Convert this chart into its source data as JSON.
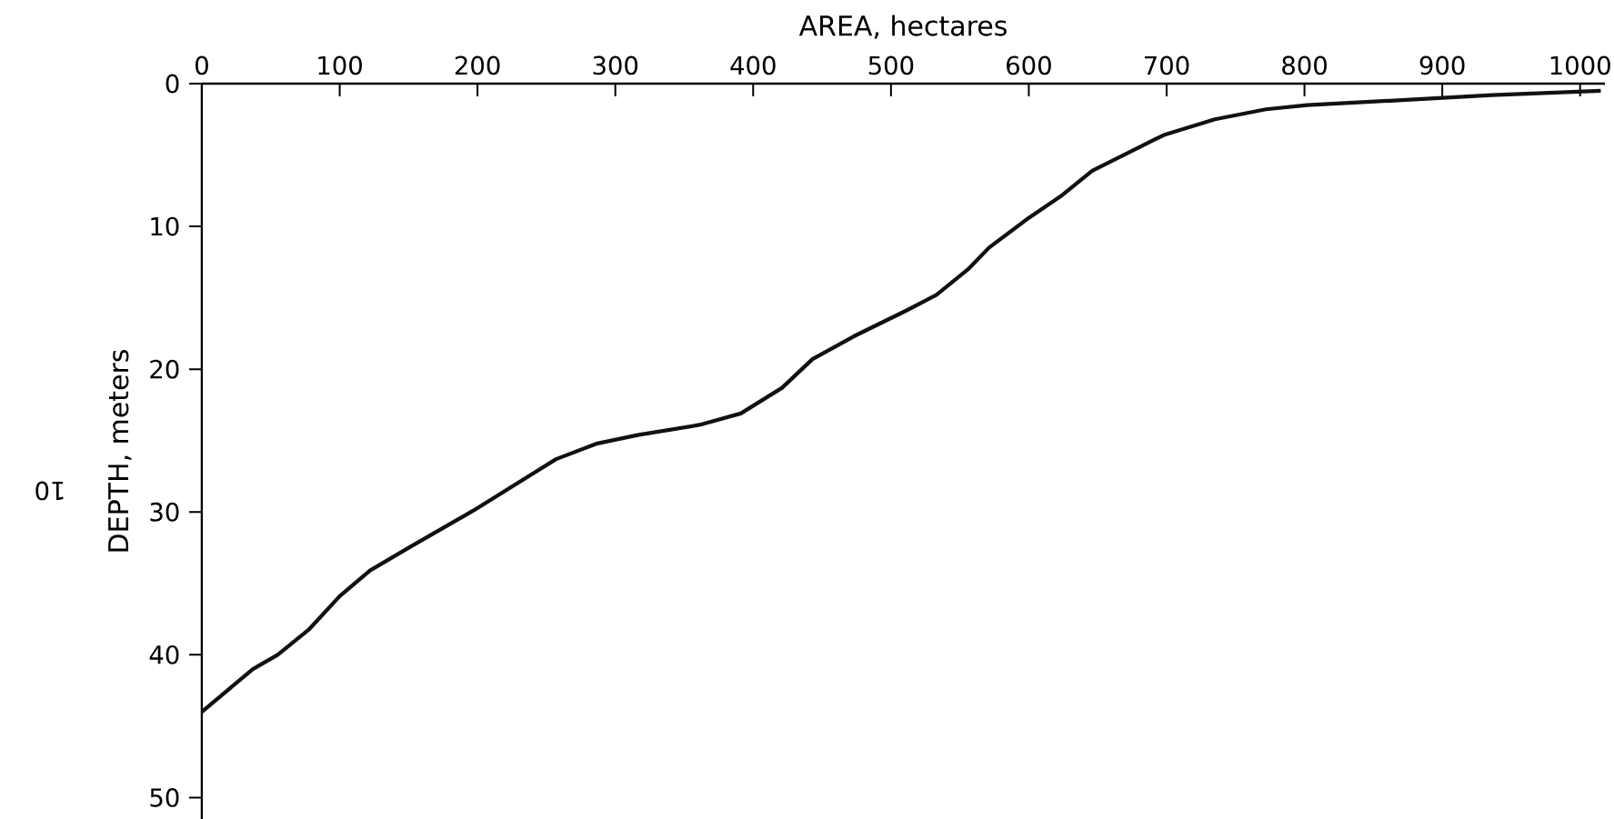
{
  "chart_data": {
    "type": "line",
    "xlabel": "AREA, hectares",
    "ylabel": "DEPTH, meters",
    "x": [
      0,
      37,
      55,
      78,
      100,
      122,
      152,
      197,
      227,
      257,
      287,
      317,
      361,
      391,
      421,
      443,
      473,
      511,
      533,
      556,
      571,
      600,
      623,
      646,
      675,
      698,
      735,
      772,
      802,
      862,
      936,
      1015
    ],
    "values": [
      44,
      41,
      40,
      38.2,
      35.9,
      34.1,
      32.4,
      29.9,
      28.1,
      26.3,
      25.2,
      24.6,
      23.9,
      23.1,
      21.3,
      19.3,
      17.7,
      15.9,
      14.8,
      13.0,
      11.5,
      9.4,
      7.9,
      6.1,
      4.7,
      3.6,
      2.5,
      1.8,
      1.5,
      1.2,
      0.8,
      0.5
    ],
    "color": "#111111",
    "xlim": [
      0,
      1018
    ],
    "ylim": [
      51.5,
      0
    ],
    "xticks": [
      0,
      100,
      200,
      300,
      400,
      500,
      600,
      700,
      800,
      900,
      1000
    ],
    "yticks": [
      0,
      10,
      20,
      30,
      40,
      50
    ],
    "annotations": [
      "10"
    ]
  }
}
